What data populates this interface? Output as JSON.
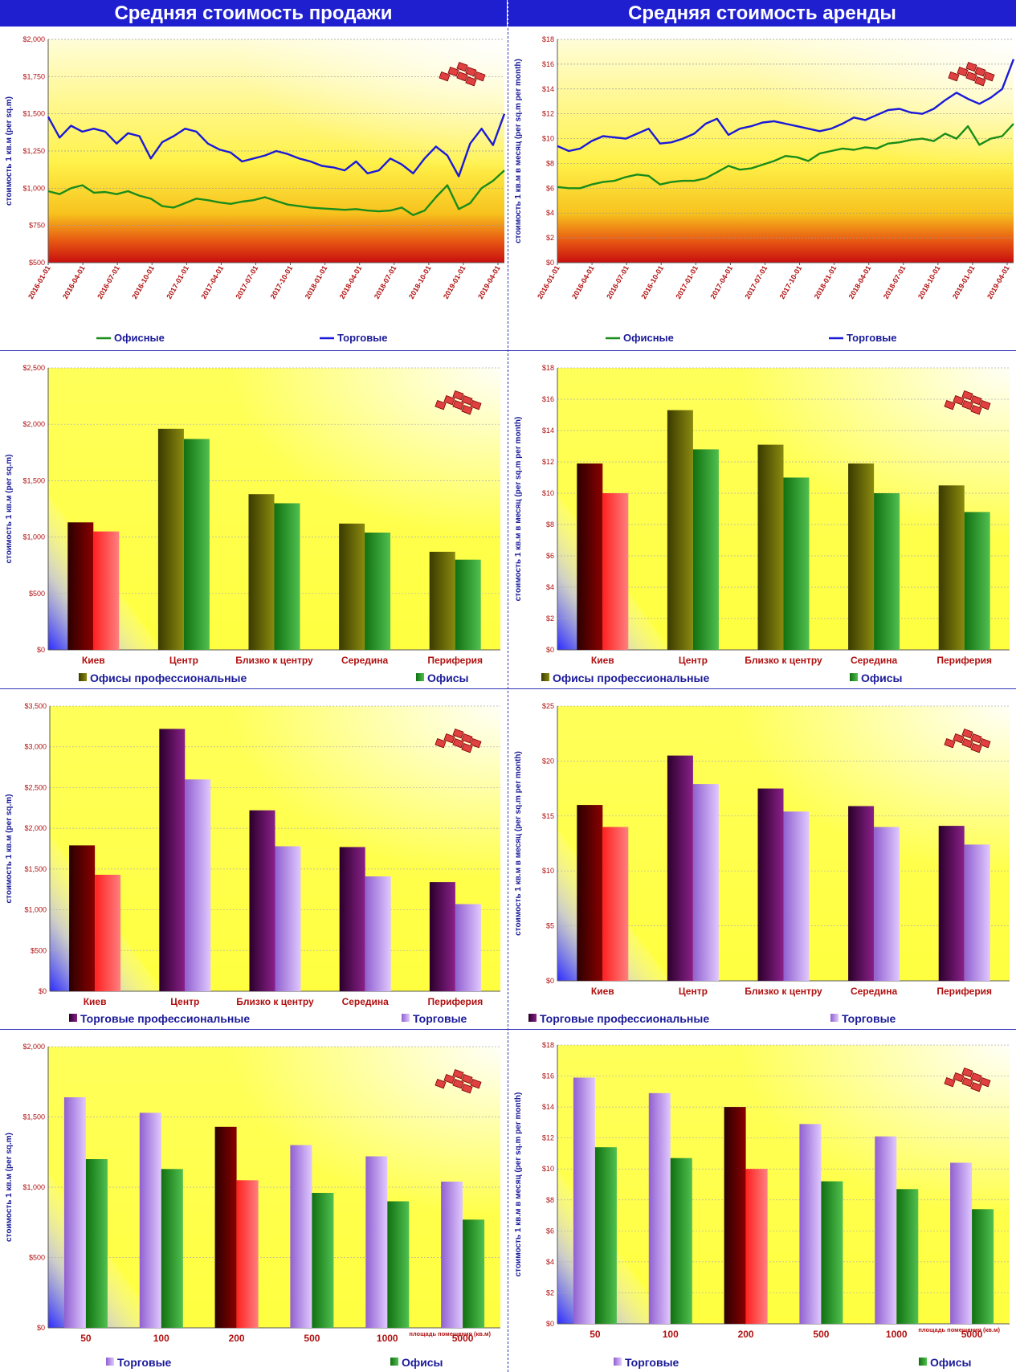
{
  "headers": {
    "sale": "Средняя стоимость продажи",
    "rent": "Средняя стоимость аренды"
  },
  "colors": {
    "header_bg": "#1f1fd0",
    "line_green": "#1a8c1a",
    "line_blue": "#1a1ad8",
    "kiev_dark": "#7a0000",
    "kiev_light": "#ff4040",
    "olive": "#6b6b00",
    "green_bar": "#1e8f1e",
    "purple_dark": "#6a0a6a",
    "lavender": "#b48ce6",
    "tick_red": "#b01010",
    "axis_blue": "#1a1a99"
  },
  "chart_data": [
    {
      "id": "sale-trend",
      "type": "line",
      "ylabel": "стоимость 1 кв.м (per sq.m)",
      "ylim": [
        500,
        2000
      ],
      "yticks": [
        500,
        750,
        1000,
        1250,
        1500,
        1750,
        2000
      ],
      "ytick_labels": [
        "$500",
        "$750",
        "$1,000",
        "$1,250",
        "$1,500",
        "$1,750",
        "$2,000"
      ],
      "x_labels": [
        "2016-01-01",
        "2016-04-01",
        "2016-07-01",
        "2016-10-01",
        "2017-01-01",
        "2017-04-01",
        "2017-07-01",
        "2017-10-01",
        "2018-01-01",
        "2018-04-01",
        "2018-07-01",
        "2018-10-01",
        "2019-01-01",
        "2019-04-01"
      ],
      "series": [
        {
          "name": "Офисные",
          "color": "#1a8c1a",
          "values": [
            980,
            960,
            1000,
            1020,
            970,
            975,
            960,
            980,
            950,
            930,
            880,
            870,
            900,
            930,
            920,
            905,
            895,
            910,
            920,
            940,
            915,
            890,
            880,
            870,
            865,
            860,
            855,
            860,
            850,
            845,
            850,
            870,
            820,
            850,
            940,
            1020,
            860,
            900,
            1000,
            1050,
            1120
          ]
        },
        {
          "name": "Торговые",
          "color": "#1a1ad8",
          "values": [
            1480,
            1340,
            1420,
            1380,
            1400,
            1380,
            1300,
            1370,
            1350,
            1200,
            1310,
            1350,
            1400,
            1380,
            1300,
            1260,
            1240,
            1180,
            1200,
            1220,
            1250,
            1230,
            1200,
            1180,
            1150,
            1140,
            1120,
            1180,
            1100,
            1120,
            1200,
            1160,
            1100,
            1200,
            1280,
            1220,
            1080,
            1300,
            1400,
            1290,
            1500
          ]
        }
      ]
    },
    {
      "id": "rent-trend",
      "type": "line",
      "ylabel": "стоимость 1 кв.м в месяц (per sq.m per month)",
      "ylim": [
        0,
        18
      ],
      "yticks": [
        0,
        2,
        4,
        6,
        8,
        10,
        12,
        14,
        16,
        18
      ],
      "ytick_labels": [
        "$0",
        "$2",
        "$4",
        "$6",
        "$8",
        "$10",
        "$12",
        "$14",
        "$16",
        "$18"
      ],
      "x_labels": [
        "2016-01-01",
        "2016-04-01",
        "2016-07-01",
        "2016-10-01",
        "2017-01-01",
        "2017-04-01",
        "2017-07-01",
        "2017-10-01",
        "2018-01-01",
        "2018-04-01",
        "2018-07-01",
        "2018-10-01",
        "2019-01-01",
        "2019-04-01"
      ],
      "series": [
        {
          "name": "Офисные",
          "color": "#1a8c1a",
          "values": [
            6.1,
            6.0,
            6.0,
            6.3,
            6.5,
            6.6,
            6.9,
            7.1,
            7.0,
            6.3,
            6.5,
            6.6,
            6.6,
            6.8,
            7.3,
            7.8,
            7.5,
            7.6,
            7.9,
            8.2,
            8.6,
            8.5,
            8.2,
            8.8,
            9.0,
            9.2,
            9.1,
            9.3,
            9.2,
            9.6,
            9.7,
            9.9,
            10.0,
            9.8,
            10.4,
            10.0,
            11.0,
            9.5,
            10.0,
            10.2,
            11.2
          ]
        },
        {
          "name": "Торговые",
          "color": "#1a1ad8",
          "values": [
            9.4,
            9.0,
            9.2,
            9.8,
            10.2,
            10.1,
            10.0,
            10.4,
            10.8,
            9.6,
            9.7,
            10.0,
            10.4,
            11.2,
            11.6,
            10.3,
            10.8,
            11.0,
            11.3,
            11.4,
            11.2,
            11.0,
            10.8,
            10.6,
            10.8,
            11.2,
            11.7,
            11.5,
            11.9,
            12.3,
            12.4,
            12.1,
            12.0,
            12.4,
            13.1,
            13.7,
            13.2,
            12.8,
            13.3,
            14.0,
            16.4
          ]
        }
      ]
    },
    {
      "id": "sale-offices-region",
      "type": "bar",
      "ylabel": "стоимость 1 кв.м (per sq.m)",
      "ylim": [
        0,
        2500
      ],
      "yticks": [
        0,
        500,
        1000,
        1500,
        2000,
        2500
      ],
      "ytick_labels": [
        "$0",
        "$500",
        "$1,000",
        "$1,500",
        "$2,000",
        "$2,500"
      ],
      "categories": [
        "Киев",
        "Центр",
        "Близко к центру",
        "Середина",
        "Периферия"
      ],
      "series": [
        {
          "name": "Офисы профессиональные",
          "values": [
            1130,
            1960,
            1380,
            1120,
            870
          ]
        },
        {
          "name": "Офисы",
          "values": [
            1050,
            1870,
            1300,
            1040,
            800
          ]
        }
      ]
    },
    {
      "id": "rent-offices-region",
      "type": "bar",
      "ylabel": "стоимость 1 кв.м в месяц (per sq.m per month)",
      "ylim": [
        0,
        18
      ],
      "yticks": [
        0,
        2,
        4,
        6,
        8,
        10,
        12,
        14,
        16,
        18
      ],
      "ytick_labels": [
        "$0",
        "$2",
        "$4",
        "$6",
        "$8",
        "$10",
        "$12",
        "$14",
        "$16",
        "$18"
      ],
      "categories": [
        "Киев",
        "Центр",
        "Близко к центру",
        "Середина",
        "Периферия"
      ],
      "series": [
        {
          "name": "Офисы профессиональные",
          "values": [
            11.9,
            15.3,
            13.1,
            11.9,
            10.5
          ]
        },
        {
          "name": "Офисы",
          "values": [
            10.0,
            12.8,
            11.0,
            10.0,
            8.8
          ]
        }
      ]
    },
    {
      "id": "sale-retail-region",
      "type": "bar",
      "ylabel": "стоимость 1 кв.м (per sq.m)",
      "ylim": [
        0,
        3500
      ],
      "yticks": [
        0,
        500,
        1000,
        1500,
        2000,
        2500,
        3000,
        3500
      ],
      "ytick_labels": [
        "$0",
        "$500",
        "$1,000",
        "$1,500",
        "$2,000",
        "$2,500",
        "$3,000",
        "$3,500"
      ],
      "categories": [
        "Киев",
        "Центр",
        "Близко к центру",
        "Середина",
        "Периферия"
      ],
      "series": [
        {
          "name": "Торговые профессиональные",
          "values": [
            1790,
            3220,
            2220,
            1770,
            1340
          ]
        },
        {
          "name": "Торговые",
          "values": [
            1430,
            2600,
            1780,
            1410,
            1070
          ]
        }
      ]
    },
    {
      "id": "rent-retail-region",
      "type": "bar",
      "ylabel": "стоимость 1 кв.м в месяц (per sq.m per month)",
      "ylim": [
        0,
        25
      ],
      "yticks": [
        0,
        5,
        10,
        15,
        20,
        25
      ],
      "ytick_labels": [
        "$0",
        "$5",
        "$10",
        "$15",
        "$20",
        "$25"
      ],
      "categories": [
        "Киев",
        "Центр",
        "Близко к центру",
        "Середина",
        "Периферия"
      ],
      "series": [
        {
          "name": "Торговые профессиональные",
          "values": [
            16.0,
            20.5,
            17.5,
            15.9,
            14.1
          ]
        },
        {
          "name": "Торговые",
          "values": [
            14.0,
            17.9,
            15.4,
            14.0,
            12.4
          ]
        }
      ]
    },
    {
      "id": "sale-by-area",
      "type": "bar",
      "ylabel": "стоимость 1 кв.м (per sq.m)",
      "xlabel": "площадь помещения (кв.м)",
      "ylim": [
        0,
        2000
      ],
      "yticks": [
        0,
        500,
        1000,
        1500,
        2000
      ],
      "ytick_labels": [
        "$0",
        "$500",
        "$1,000",
        "$1,500",
        "$2,000"
      ],
      "categories": [
        "50",
        "100",
        "200",
        "500",
        "1000",
        "5000"
      ],
      "series": [
        {
          "name": "Торговые",
          "values": [
            1640,
            1530,
            1430,
            1300,
            1220,
            1040
          ]
        },
        {
          "name": "Офисы",
          "values": [
            1200,
            1130,
            1050,
            960,
            900,
            770
          ]
        }
      ]
    },
    {
      "id": "rent-by-area",
      "type": "bar",
      "ylabel": "стоимость 1 кв.м в месяц (per sq.m per month)",
      "xlabel": "площадь помещения (кв.м)",
      "ylim": [
        0,
        18
      ],
      "yticks": [
        0,
        2,
        4,
        6,
        8,
        10,
        12,
        14,
        16,
        18
      ],
      "ytick_labels": [
        "$0",
        "$2",
        "$4",
        "$6",
        "$8",
        "$10",
        "$12",
        "$14",
        "$16",
        "$18"
      ],
      "categories": [
        "50",
        "100",
        "200",
        "500",
        "1000",
        "5000"
      ],
      "series": [
        {
          "name": "Торговые",
          "values": [
            15.9,
            14.9,
            14.0,
            12.9,
            12.1,
            10.4
          ]
        },
        {
          "name": "Офисы",
          "values": [
            11.4,
            10.7,
            10.0,
            9.2,
            8.7,
            7.4
          ]
        }
      ]
    }
  ]
}
